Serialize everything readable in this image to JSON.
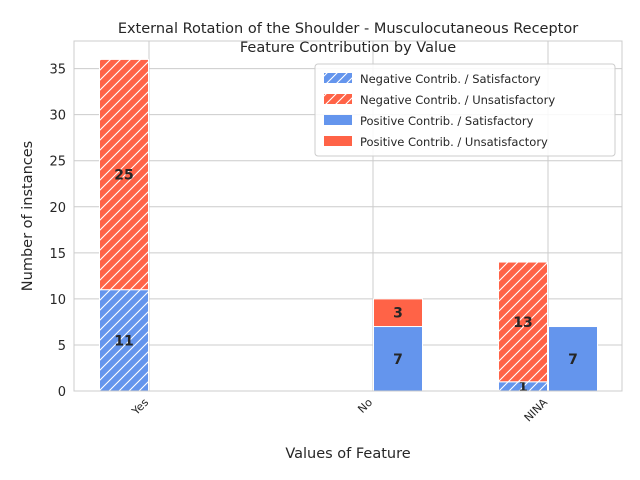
{
  "chart_data": {
    "type": "bar",
    "title_line1": "External Rotation of the Shoulder - Musculocutaneous Receptor",
    "title_line2": "Feature Contribution by Value",
    "xlabel": "Values of Feature",
    "ylabel": "Number of instances",
    "categories": [
      "Yes",
      "No",
      "NINA"
    ],
    "ylim": [
      0,
      38
    ],
    "yticks": [
      0,
      5,
      10,
      15,
      20,
      25,
      30,
      35
    ],
    "grid": true,
    "legend_position": "top-right",
    "colors": {
      "satisfactory": "#6495ED",
      "unsatisfactory": "#FF6347"
    },
    "groups": [
      {
        "name": "Negative Contrib.",
        "hatched": true,
        "series": [
          {
            "name": "Negative Contrib. / Satisfactory",
            "outcome": "satisfactory",
            "values": [
              11,
              0,
              1
            ],
            "labels": [
              "11",
              "",
              "1"
            ]
          },
          {
            "name": "Negative Contrib. / Unsatisfactory",
            "outcome": "unsatisfactory",
            "values": [
              25,
              0,
              13
            ],
            "labels": [
              "25",
              "",
              "13"
            ]
          }
        ]
      },
      {
        "name": "Positive Contrib.",
        "hatched": false,
        "series": [
          {
            "name": "Positive Contrib. / Satisfactory",
            "outcome": "satisfactory",
            "values": [
              0,
              7,
              7
            ],
            "labels": [
              "",
              "7",
              "7"
            ]
          },
          {
            "name": "Positive Contrib. / Unsatisfactory",
            "outcome": "unsatisfactory",
            "values": [
              0,
              3,
              0
            ],
            "labels": [
              "",
              "3",
              ""
            ]
          }
        ]
      }
    ]
  }
}
